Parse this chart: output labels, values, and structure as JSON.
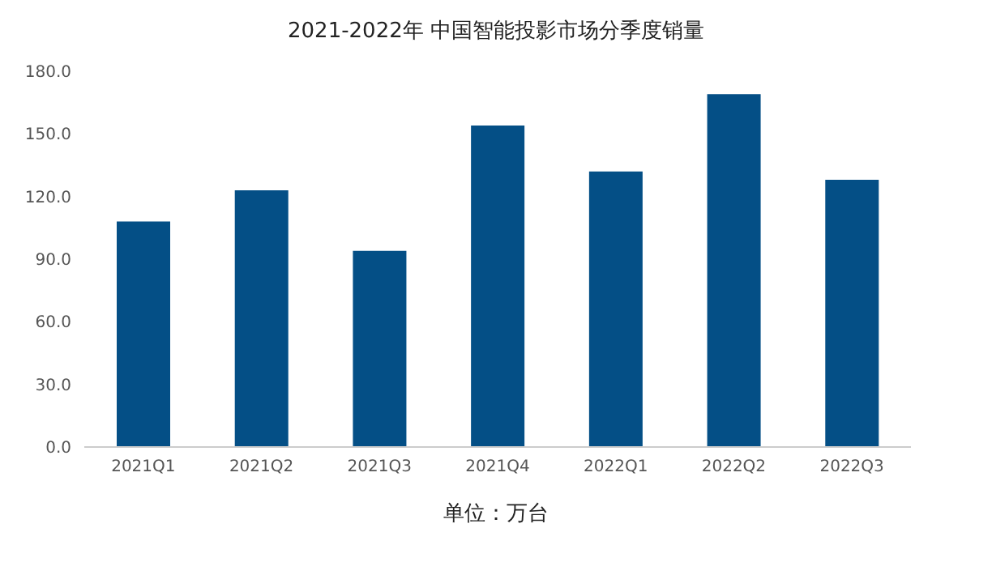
{
  "chart_data": {
    "type": "bar",
    "title": "2021-2022年 中国智能投影市场分季度销量",
    "categories": [
      "2021Q1",
      "2021Q2",
      "2021Q3",
      "2021Q4",
      "2022Q1",
      "2022Q2",
      "2022Q3"
    ],
    "values": [
      108,
      123,
      94,
      154,
      132,
      169,
      128
    ],
    "color": "#044f86",
    "ylim": [
      0,
      180
    ],
    "yticks": [
      {
        "value": 0,
        "label": "0.0"
      },
      {
        "value": 30,
        "label": "30.0"
      },
      {
        "value": 60,
        "label": "60.0"
      },
      {
        "value": 90,
        "label": "90.0"
      },
      {
        "value": 120,
        "label": "120.0"
      },
      {
        "value": 150,
        "label": "150.0"
      },
      {
        "value": 180,
        "label": "180.0"
      }
    ],
    "grid": false,
    "annotations": [
      "单位：万台"
    ]
  }
}
